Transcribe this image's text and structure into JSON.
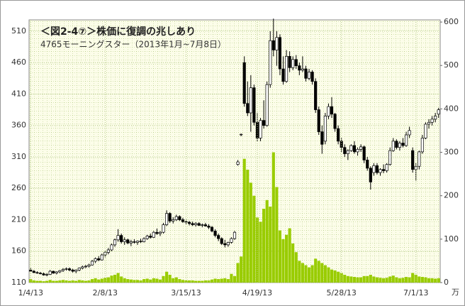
{
  "chart_data": {
    "type": "candlestick",
    "title": "＜図2-4⑦＞株価に復調の兆しあり",
    "subtitle": "4765モーニングスター（2013年1月~7月8日）",
    "y2_unit": "万",
    "categories": [
      "1/4/13",
      null,
      null,
      null,
      null,
      null,
      null,
      null,
      null,
      null,
      null,
      null,
      null,
      null,
      null,
      null,
      null,
      null,
      null,
      null,
      null,
      null,
      null,
      "2/8/13",
      null,
      null,
      null,
      null,
      null,
      null,
      null,
      null,
      null,
      null,
      null,
      null,
      null,
      null,
      null,
      null,
      null,
      null,
      null,
      null,
      null,
      null,
      null,
      null,
      "3/15/13",
      null,
      null,
      null,
      null,
      null,
      null,
      null,
      null,
      null,
      null,
      null,
      null,
      null,
      null,
      null,
      null,
      null,
      null,
      null,
      null,
      null,
      "4/19/13",
      null,
      null,
      null,
      null,
      null,
      null,
      null,
      null,
      null,
      null,
      null,
      null,
      null,
      null,
      null,
      null,
      null,
      null,
      null,
      null,
      null,
      null,
      null,
      null,
      null,
      "5/28/13",
      null,
      null,
      null,
      null,
      null,
      null,
      null,
      null,
      null,
      null,
      null,
      null,
      null,
      null,
      null,
      null,
      null,
      null,
      null,
      null,
      null,
      null,
      "7/1/13",
      null,
      null,
      null,
      null,
      null,
      null,
      null
    ],
    "open": [
      130,
      128,
      126,
      125,
      124,
      122,
      123,
      128,
      125,
      127,
      129,
      131,
      132,
      130,
      128,
      130,
      133,
      135,
      136,
      138,
      144,
      148,
      146,
      154,
      158,
      162,
      170,
      178,
      185,
      175,
      178,
      173,
      175,
      174,
      176,
      175,
      180,
      184,
      182,
      190,
      188,
      190,
      202,
      220,
      208,
      210,
      215,
      210,
      207,
      206,
      204,
      202,
      204,
      201,
      202,
      200,
      198,
      192,
      185,
      180,
      172,
      170,
      174,
      180,
      298,
      345,
      460,
      395,
      380,
      420,
      365,
      340,
      368,
      360,
      425,
      495,
      480,
      500,
      450,
      430,
      470,
      452,
      465,
      455,
      448,
      450,
      435,
      445,
      430,
      385,
      350,
      335,
      375,
      390,
      378,
      355,
      335,
      325,
      315,
      320,
      328,
      318,
      322,
      326,
      305,
      292,
      285,
      296,
      285,
      290,
      288,
      298,
      320,
      335,
      325,
      332,
      328,
      345,
      320,
      290,
      295,
      318,
      340,
      362,
      365,
      370,
      378
    ],
    "high": [
      133,
      130,
      128,
      127,
      126,
      125,
      130,
      129,
      128,
      130,
      133,
      134,
      134,
      132,
      131,
      134,
      137,
      138,
      140,
      146,
      150,
      152,
      156,
      160,
      165,
      172,
      180,
      195,
      188,
      182,
      180,
      178,
      179,
      177,
      180,
      182,
      186,
      188,
      192,
      196,
      192,
      205,
      225,
      222,
      214,
      218,
      217,
      213,
      210,
      208,
      207,
      206,
      206,
      204,
      205,
      203,
      200,
      195,
      188,
      182,
      178,
      175,
      182,
      192,
      305,
      347,
      470,
      430,
      440,
      425,
      380,
      372,
      400,
      430,
      510,
      530,
      510,
      505,
      470,
      480,
      478,
      470,
      472,
      460,
      470,
      455,
      450,
      448,
      435,
      390,
      360,
      380,
      395,
      405,
      380,
      360,
      340,
      330,
      322,
      330,
      335,
      325,
      330,
      328,
      310,
      295,
      300,
      300,
      292,
      298,
      300,
      325,
      340,
      338,
      335,
      340,
      350,
      358,
      325,
      300,
      320,
      345,
      365,
      370,
      375,
      380,
      388
    ],
    "low": [
      127,
      125,
      124,
      123,
      121,
      120,
      122,
      124,
      123,
      125,
      127,
      129,
      128,
      126,
      125,
      128,
      131,
      133,
      134,
      137,
      141,
      144,
      145,
      150,
      155,
      160,
      167,
      175,
      172,
      170,
      171,
      168,
      172,
      170,
      173,
      174,
      178,
      180,
      181,
      186,
      184,
      188,
      200,
      205,
      204,
      208,
      208,
      205,
      203,
      201,
      200,
      199,
      200,
      198,
      199,
      195,
      190,
      182,
      176,
      170,
      166,
      167,
      172,
      178,
      296,
      343,
      390,
      375,
      350,
      360,
      335,
      335,
      355,
      358,
      420,
      470,
      455,
      440,
      425,
      428,
      445,
      448,
      450,
      440,
      445,
      430,
      432,
      425,
      380,
      345,
      315,
      330,
      370,
      372,
      350,
      330,
      318,
      310,
      305,
      318,
      315,
      312,
      318,
      300,
      288,
      258,
      280,
      282,
      280,
      284,
      285,
      296,
      318,
      322,
      320,
      325,
      326,
      340,
      285,
      272,
      290,
      315,
      338,
      355,
      360,
      365,
      372
    ],
    "close": [
      128,
      126,
      125,
      124,
      122,
      123,
      128,
      125,
      127,
      129,
      131,
      132,
      130,
      128,
      130,
      133,
      135,
      136,
      138,
      144,
      148,
      146,
      154,
      158,
      162,
      170,
      178,
      185,
      175,
      178,
      173,
      175,
      174,
      176,
      175,
      180,
      184,
      182,
      190,
      188,
      190,
      202,
      220,
      208,
      210,
      215,
      210,
      207,
      206,
      204,
      202,
      204,
      201,
      202,
      200,
      198,
      192,
      185,
      180,
      172,
      170,
      174,
      180,
      190,
      302,
      346,
      395,
      380,
      420,
      365,
      340,
      368,
      360,
      425,
      495,
      480,
      500,
      450,
      430,
      470,
      452,
      465,
      455,
      448,
      450,
      435,
      445,
      430,
      385,
      350,
      330,
      375,
      390,
      378,
      355,
      335,
      325,
      315,
      320,
      328,
      318,
      322,
      326,
      305,
      292,
      270,
      296,
      285,
      290,
      288,
      298,
      320,
      335,
      325,
      332,
      328,
      345,
      352,
      290,
      295,
      318,
      340,
      362,
      365,
      370,
      375,
      385
    ],
    "volume": [
      8,
      5,
      4,
      4,
      3,
      4,
      6,
      4,
      4,
      5,
      6,
      5,
      4,
      5,
      4,
      6,
      5,
      4,
      5,
      8,
      10,
      7,
      9,
      11,
      12,
      16,
      18,
      22,
      14,
      10,
      8,
      7,
      6,
      6,
      5,
      8,
      9,
      7,
      10,
      9,
      7,
      15,
      25,
      18,
      10,
      12,
      8,
      6,
      5,
      5,
      5,
      4,
      4,
      4,
      5,
      5,
      7,
      9,
      8,
      9,
      10,
      8,
      20,
      15,
      45,
      60,
      285,
      260,
      230,
      200,
      150,
      140,
      170,
      190,
      175,
      300,
      220,
      120,
      100,
      110,
      125,
      90,
      70,
      50,
      45,
      40,
      35,
      40,
      55,
      50,
      45,
      40,
      35,
      30,
      28,
      25,
      22,
      18,
      15,
      14,
      13,
      12,
      12,
      15,
      15,
      18,
      14,
      12,
      11,
      10,
      11,
      14,
      16,
      12,
      10,
      11,
      13,
      12,
      22,
      18,
      14,
      13,
      12,
      10,
      10,
      9,
      10
    ],
    "ylim": [
      110,
      528
    ],
    "yticks": [
      110,
      160,
      210,
      260,
      310,
      360,
      410,
      460,
      510
    ],
    "y2lim": [
      0,
      605
    ],
    "y2ticks": [
      0,
      100,
      200,
      300,
      400,
      500,
      600
    ],
    "up_color": "#ffffff",
    "down_color": "#000000",
    "volume_color": "#99cc00",
    "grid": true
  }
}
